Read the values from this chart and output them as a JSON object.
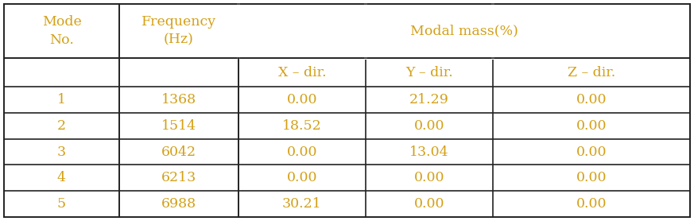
{
  "header_row1_col01": [
    "Mode\nNo.",
    "Frequency\n(Hz)"
  ],
  "header_row1_span": "Modal mass(%)",
  "header_row2": [
    "X – dir.",
    "Y – dir.",
    "Z – dir."
  ],
  "data": [
    [
      1,
      1368,
      "0.00",
      "21.29",
      "0.00"
    ],
    [
      2,
      1514,
      "18.52",
      "0.00",
      "0.00"
    ],
    [
      3,
      6042,
      "0.00",
      "13.04",
      "0.00"
    ],
    [
      4,
      6213,
      "0.00",
      "0.00",
      "0.00"
    ],
    [
      5,
      6988,
      "30.21",
      "0.00",
      "0.00"
    ]
  ],
  "text_color": "#d4a017",
  "border_color": "#222222",
  "bg_color": "#ffffff",
  "font_size": 12.5
}
